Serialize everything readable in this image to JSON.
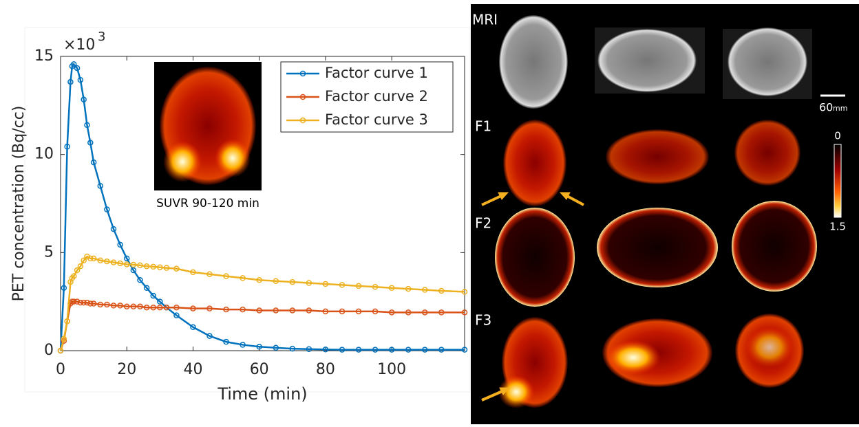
{
  "chart_data": {
    "type": "line",
    "xlabel": "Time (min)",
    "ylabel": "PET concentration (Bq/cc)",
    "y_multiplier": {
      "base": "×10",
      "exponent": "3"
    },
    "x": [
      0,
      1,
      2,
      3,
      3.5,
      4,
      5,
      6,
      7,
      8,
      9,
      10,
      12,
      14,
      16,
      18,
      20,
      22,
      24,
      26,
      28,
      30,
      32,
      35,
      40,
      45,
      50,
      55,
      60,
      65,
      70,
      75,
      80,
      85,
      90,
      95,
      100,
      105,
      110,
      115,
      122
    ],
    "series": [
      {
        "name": "Factor curve 1",
        "color": "#0072bd",
        "values": [
          0,
          3.2,
          10.4,
          13.7,
          14.5,
          14.6,
          14.4,
          13.8,
          12.8,
          11.5,
          10.6,
          9.6,
          8.4,
          7.2,
          6.2,
          5.4,
          4.7,
          4.1,
          3.6,
          3.2,
          2.8,
          2.5,
          2.2,
          1.8,
          1.2,
          0.75,
          0.45,
          0.3,
          0.2,
          0.15,
          0.1,
          0.08,
          0.06,
          0.05,
          0.05,
          0.05,
          0.05,
          0.05,
          0.05,
          0.05,
          0.05
        ]
      },
      {
        "name": "Factor curve 2",
        "color": "#d95319",
        "values": [
          0,
          0.5,
          1.5,
          2.4,
          2.5,
          2.5,
          2.5,
          2.45,
          2.45,
          2.45,
          2.4,
          2.4,
          2.35,
          2.35,
          2.3,
          2.3,
          2.25,
          2.25,
          2.25,
          2.2,
          2.2,
          2.2,
          2.2,
          2.2,
          2.15,
          2.15,
          2.1,
          2.1,
          2.05,
          2.05,
          2.05,
          2.05,
          2.0,
          2.0,
          2.0,
          2.0,
          1.95,
          1.95,
          1.95,
          1.95,
          1.95
        ]
      },
      {
        "name": "Factor curve 3",
        "color": "#edb120",
        "values": [
          0,
          0.6,
          1.5,
          3.5,
          3.7,
          3.8,
          4.1,
          4.3,
          4.6,
          4.8,
          4.7,
          4.7,
          4.6,
          4.55,
          4.5,
          4.45,
          4.4,
          4.38,
          4.35,
          4.3,
          4.28,
          4.25,
          4.22,
          4.18,
          4.0,
          3.9,
          3.8,
          3.7,
          3.6,
          3.55,
          3.5,
          3.45,
          3.4,
          3.35,
          3.3,
          3.25,
          3.2,
          3.15,
          3.1,
          3.05,
          3.0
        ]
      }
    ],
    "xlim": [
      0,
      122
    ],
    "ylim": [
      0,
      15
    ],
    "xticks": [
      0,
      20,
      40,
      60,
      80,
      100
    ],
    "yticks": [
      0,
      5,
      10,
      15
    ],
    "legend": "upper right"
  },
  "inset": {
    "caption": "SUVR 90-120 min"
  },
  "image_panel": {
    "rows": [
      "MRI",
      "F1",
      "F2",
      "F3"
    ],
    "scale_bar": {
      "value": 60,
      "unit": "mm"
    },
    "colorbar": {
      "ticks": [
        0,
        1.5
      ]
    }
  }
}
